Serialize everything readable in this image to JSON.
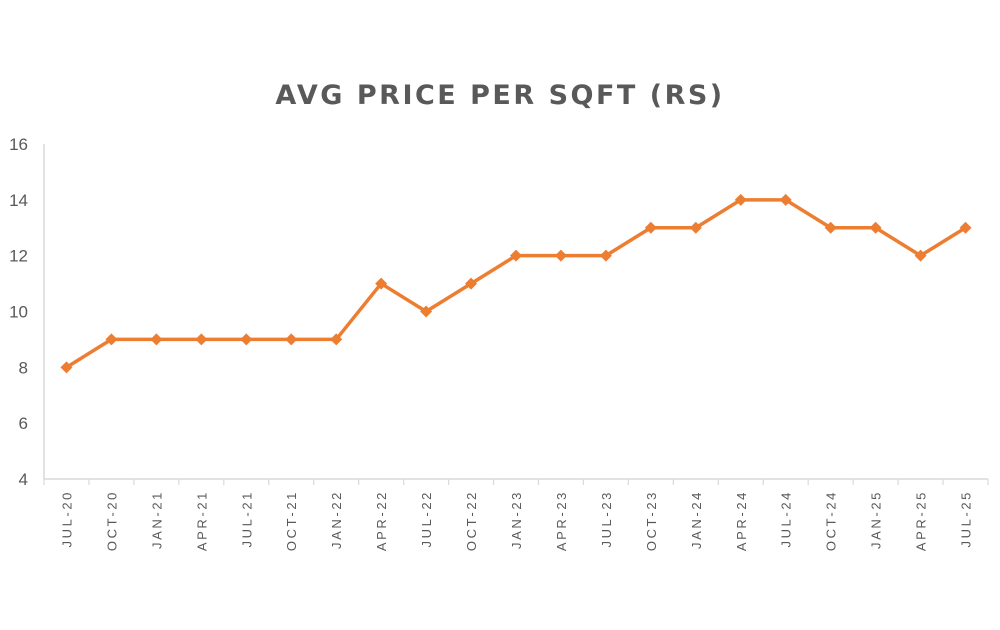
{
  "chart": {
    "title": "AVG PRICE PER SQFT (RS)"
  },
  "colors": {
    "line": "#ED7D31",
    "axis": "#D9D9D9",
    "text": "#595959"
  },
  "chart_data": {
    "type": "line",
    "title": "AVG PRICE PER SQFT (RS)",
    "xlabel": "",
    "ylabel": "",
    "categories": [
      "JUL-20",
      "OCT-20",
      "JAN-21",
      "APR-21",
      "JUL-21",
      "OCT-21",
      "JAN-22",
      "APR-22",
      "JUL-22",
      "OCT-22",
      "JAN-23",
      "APR-23",
      "JUL-23",
      "OCT-23",
      "JAN-24",
      "APR-24",
      "JUL-24",
      "OCT-24",
      "JAN-25",
      "APR-25",
      "JUL-25"
    ],
    "series": [
      {
        "name": "Avg Price per Sqft (Rs)",
        "values": [
          8,
          9,
          9,
          9,
          9,
          9,
          9,
          11,
          10,
          11,
          12,
          12,
          12,
          13,
          13,
          14,
          14,
          13,
          13,
          12,
          13
        ],
        "marker": "diamond",
        "color": "#ED7D31"
      }
    ],
    "ylim": [
      4,
      16
    ],
    "yticks": [
      4,
      6,
      8,
      10,
      12,
      14,
      16
    ],
    "grid": false,
    "legend": "none"
  }
}
